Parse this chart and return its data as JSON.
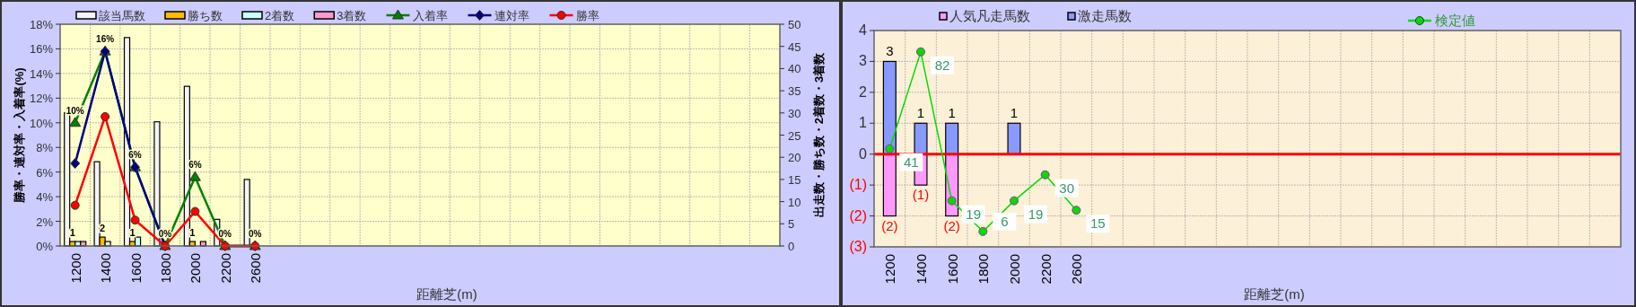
{
  "chart_data": [
    {
      "type": "bar",
      "xlabel": "距離芝(m)",
      "ylabel": "勝率・連対率・入着率(%)",
      "y2label": "出走数・勝ち数・2着数・3着数",
      "legend": "top",
      "grid": true,
      "categories": [
        "1200",
        "1400",
        "1600",
        "1800",
        "2000",
        "2200",
        "2600",
        null,
        null,
        null,
        null,
        null,
        null,
        null,
        null,
        null,
        null,
        null,
        null,
        null,
        null,
        null,
        null,
        null
      ],
      "ylim": [
        0,
        18
      ],
      "yticks": [
        {
          "value": 0,
          "label": "0%"
        },
        {
          "value": 2,
          "label": "2%"
        },
        {
          "value": 4,
          "label": "4%"
        },
        {
          "value": 6,
          "label": "6%"
        },
        {
          "value": 8,
          "label": "8%"
        },
        {
          "value": 10,
          "label": "10%"
        },
        {
          "value": 12,
          "label": "12%"
        },
        {
          "value": 14,
          "label": "14%"
        },
        {
          "value": 16,
          "label": "16%"
        },
        {
          "value": 18,
          "label": "18%"
        }
      ],
      "y2lim": [
        0,
        50
      ],
      "y2ticks": [
        0,
        5,
        10,
        15,
        20,
        25,
        30,
        35,
        40,
        45,
        50
      ],
      "series": [
        {
          "name": "該当馬数",
          "type": "bar",
          "axis": "y2",
          "color": "#f4f4f4",
          "values": [
            30,
            19,
            47,
            28,
            36,
            6,
            15,
            null,
            null,
            null,
            null,
            null,
            null,
            null,
            null,
            null,
            null,
            null,
            null,
            null,
            null,
            null,
            null,
            null
          ]
        },
        {
          "name": "勝ち数",
          "type": "bar",
          "axis": "y2",
          "color": "#ffbb00",
          "values": [
            1,
            2,
            1,
            0,
            1,
            0,
            0,
            null,
            null,
            null,
            null,
            null,
            null,
            null,
            null,
            null,
            null,
            null,
            null,
            null,
            null,
            null,
            null,
            null
          ],
          "value_labels": [
            "1",
            "2",
            "1",
            null,
            "1",
            null,
            null,
            null,
            null,
            null,
            null,
            null,
            null,
            null,
            null,
            null,
            null,
            null,
            null,
            null,
            null,
            null,
            null,
            null
          ]
        },
        {
          "name": "2着数",
          "type": "bar",
          "axis": "y2",
          "color": "#ccffff",
          "values": [
            1,
            1,
            2,
            0,
            0,
            0,
            0,
            null,
            null,
            null,
            null,
            null,
            null,
            null,
            null,
            null,
            null,
            null,
            null,
            null,
            null,
            null,
            null,
            null
          ]
        },
        {
          "name": "3着数",
          "type": "bar",
          "axis": "y2",
          "color": "#ff99cc",
          "values": [
            1,
            0,
            0,
            0,
            1,
            0,
            0,
            null,
            null,
            null,
            null,
            null,
            null,
            null,
            null,
            null,
            null,
            null,
            null,
            null,
            null,
            null,
            null,
            null
          ]
        },
        {
          "name": "入着率",
          "type": "line",
          "axis": "y",
          "color": "#008000",
          "marker": "triangle",
          "values": [
            10,
            15.8,
            6.4,
            0,
            5.6,
            0,
            0,
            null,
            null,
            null,
            null,
            null,
            null,
            null,
            null,
            null,
            null,
            null,
            null,
            null,
            null,
            null,
            null,
            null
          ],
          "value_labels": [
            "10%",
            "16%",
            "6%",
            "0%",
            "6%",
            "0%",
            "0%",
            null,
            null,
            null,
            null,
            null,
            null,
            null,
            null,
            null,
            null,
            null,
            null,
            null,
            null,
            null,
            null,
            null
          ]
        },
        {
          "name": "連対率",
          "type": "line",
          "axis": "y",
          "color": "#000080",
          "marker": "diamond",
          "values": [
            6.7,
            15.8,
            6.4,
            0,
            null,
            0,
            0,
            null,
            null,
            null,
            null,
            null,
            null,
            null,
            null,
            null,
            null,
            null,
            null,
            null,
            null,
            null,
            null,
            null
          ]
        },
        {
          "name": "勝率",
          "type": "line",
          "axis": "y",
          "color": "#ff0000",
          "marker": "circle",
          "values": [
            3.3,
            10.5,
            2.1,
            0,
            2.8,
            0,
            0,
            null,
            null,
            null,
            null,
            null,
            null,
            null,
            null,
            null,
            null,
            null,
            null,
            null,
            null,
            null,
            null,
            null
          ]
        }
      ]
    },
    {
      "type": "bar",
      "xlabel": "距離芝(m)",
      "legend": "top",
      "grid": true,
      "stacked": true,
      "categories": [
        "1200",
        "1400",
        "1600",
        "1800",
        "2000",
        "2200",
        "2600",
        null,
        null,
        null,
        null,
        null,
        null,
        null,
        null,
        null,
        null,
        null,
        null,
        null,
        null,
        null,
        null,
        null
      ],
      "ylim": [
        -3,
        4
      ],
      "yticks": [
        {
          "value": -3,
          "label": "(3)"
        },
        {
          "value": -2,
          "label": "(2)"
        },
        {
          "value": -1,
          "label": "(1)"
        },
        0,
        1,
        2,
        3,
        4
      ],
      "y2lim": [
        -0.5,
        91
      ],
      "ref_lines": [
        {
          "axis": "y",
          "value": 0,
          "color": "#ff0000",
          "line_style": "solid"
        }
      ],
      "series": [
        {
          "name": "人気凡走馬数",
          "type": "bar",
          "axis": "y",
          "color": "#ff99ff",
          "values": [
            -2,
            -1,
            -2,
            0,
            0,
            0,
            0,
            null,
            null,
            null,
            null,
            null,
            null,
            null,
            null,
            null,
            null,
            null,
            null,
            null,
            null,
            null,
            null,
            null
          ],
          "value_labels": [
            "(2)",
            "(1)",
            "(2)",
            null,
            null,
            null,
            null,
            null,
            null,
            null,
            null,
            null,
            null,
            null,
            null,
            null,
            null,
            null,
            null,
            null,
            null,
            null,
            null,
            null
          ]
        },
        {
          "name": "激走馬数",
          "type": "bar",
          "axis": "y",
          "color": "#8899ff",
          "values": [
            3,
            1,
            1,
            0,
            1,
            0,
            0,
            null,
            null,
            null,
            null,
            null,
            null,
            null,
            null,
            null,
            null,
            null,
            null,
            null,
            null,
            null,
            null,
            null
          ],
          "value_labels": [
            "3",
            "1",
            "1",
            null,
            "1",
            null,
            null,
            null,
            null,
            null,
            null,
            null,
            null,
            null,
            null,
            null,
            null,
            null,
            null,
            null,
            null,
            null,
            null,
            null
          ]
        },
        {
          "name": "検定値",
          "type": "line",
          "axis": "y2",
          "color": "#00dd00",
          "marker": "circle",
          "values": [
            41,
            82,
            19,
            6,
            19,
            30,
            15,
            null,
            null,
            null,
            null,
            null,
            null,
            null,
            null,
            null,
            null,
            null,
            null,
            null,
            null,
            null,
            null,
            null
          ],
          "value_labels": [
            "41",
            "82",
            "19",
            "6",
            "19",
            "30",
            "15",
            null,
            null,
            null,
            null,
            null,
            null,
            null,
            null,
            null,
            null,
            null,
            null,
            null,
            null,
            null,
            null,
            null
          ]
        }
      ]
    }
  ]
}
